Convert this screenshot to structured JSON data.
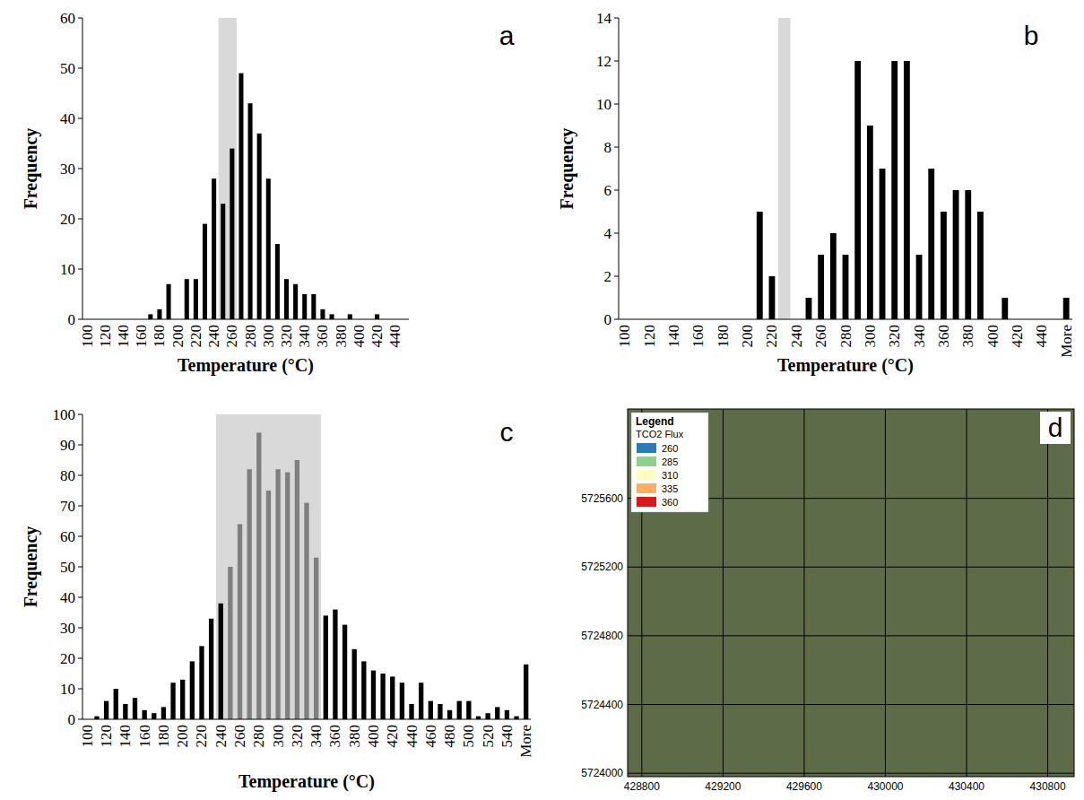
{
  "chart_data": [
    {
      "type": "bar",
      "panel_label": "a",
      "x_label": "Temperature (°C)",
      "y_label": "Frequency",
      "categories": [
        "100",
        null,
        "120",
        null,
        "140",
        null,
        "160",
        null,
        "180",
        null,
        "200",
        null,
        "220",
        null,
        "240",
        null,
        "260",
        null,
        "280",
        null,
        "300",
        null,
        "320",
        null,
        "340",
        null,
        "360",
        null,
        "380",
        null,
        "400",
        null,
        "420",
        null,
        "440",
        null
      ],
      "values": [
        0,
        0,
        0,
        0,
        0,
        0,
        0,
        1,
        2,
        7,
        0,
        8,
        8,
        19,
        28,
        23,
        34,
        49,
        43,
        37,
        28,
        15,
        8,
        7,
        5,
        5,
        2,
        1,
        0,
        1,
        0,
        0,
        1,
        0,
        0,
        0
      ],
      "color": "#000000",
      "ylim": [
        0,
        60
      ],
      "yticks": [
        0,
        10,
        20,
        30,
        40,
        50,
        60
      ],
      "shaded_range": [
        245,
        265
      ]
    },
    {
      "type": "bar",
      "panel_label": "b",
      "x_label": "Temperature (°C)",
      "y_label": "Frequency",
      "categories": [
        "100",
        null,
        "120",
        null,
        "140",
        null,
        "160",
        null,
        "180",
        null,
        "200",
        null,
        "220",
        null,
        "240",
        null,
        "260",
        null,
        "280",
        null,
        "300",
        null,
        "320",
        null,
        "340",
        null,
        "360",
        null,
        "380",
        null,
        "400",
        null,
        "420",
        null,
        "440",
        null,
        "More"
      ],
      "values": [
        0,
        0,
        0,
        0,
        0,
        0,
        0,
        0,
        0,
        0,
        0,
        5,
        2,
        0,
        0,
        1,
        3,
        4,
        3,
        12,
        9,
        7,
        12,
        12,
        3,
        7,
        5,
        6,
        6,
        5,
        0,
        1,
        0,
        0,
        0,
        0,
        1
      ],
      "color": "#000000",
      "ylim": [
        0,
        14
      ],
      "yticks": [
        0,
        2,
        4,
        6,
        8,
        10,
        12,
        14
      ],
      "shaded_range": [
        225,
        235
      ]
    },
    {
      "type": "bar",
      "panel_label": "c",
      "x_label": "Temperature (°C)",
      "y_label": "Frequency",
      "categories": [
        "100",
        null,
        "120",
        null,
        "140",
        null,
        "160",
        null,
        "180",
        null,
        "200",
        null,
        "220",
        null,
        "240",
        null,
        "260",
        null,
        "280",
        null,
        "300",
        null,
        "320",
        null,
        "340",
        null,
        "360",
        null,
        "380",
        null,
        "400",
        null,
        "420",
        null,
        "440",
        null,
        "460",
        null,
        "480",
        null,
        "500",
        null,
        "520",
        null,
        "540",
        null,
        "More"
      ],
      "values": [
        0,
        1,
        6,
        10,
        5,
        7,
        3,
        2,
        4,
        12,
        13,
        19,
        24,
        33,
        38,
        50,
        64,
        82,
        94,
        75,
        82,
        81,
        85,
        71,
        53,
        34,
        36,
        31,
        23,
        19,
        16,
        15,
        14,
        12,
        5,
        12,
        6,
        5,
        3,
        6,
        6,
        1,
        2,
        4,
        3,
        1,
        18
      ],
      "colors": [
        "#000000",
        "#000000",
        "#000000",
        "#000000",
        "#000000",
        "#000000",
        "#000000",
        "#000000",
        "#000000",
        "#000000",
        "#000000",
        "#000000",
        "#000000",
        "#000000",
        "#000000",
        "#7f7f7f",
        "#7f7f7f",
        "#7f7f7f",
        "#7f7f7f",
        "#7f7f7f",
        "#7f7f7f",
        "#7f7f7f",
        "#7f7f7f",
        "#7f7f7f",
        "#7f7f7f",
        "#000000",
        "#000000",
        "#000000",
        "#000000",
        "#000000",
        "#000000",
        "#000000",
        "#000000",
        "#000000",
        "#000000",
        "#000000",
        "#000000",
        "#000000",
        "#000000",
        "#000000",
        "#000000",
        "#000000",
        "#000000",
        "#000000",
        "#000000",
        "#000000",
        "#000000"
      ],
      "ylim": [
        0,
        100
      ],
      "yticks": [
        0,
        10,
        20,
        30,
        40,
        50,
        60,
        70,
        80,
        90,
        100
      ],
      "shaded_range": [
        235,
        345
      ]
    },
    {
      "type": "map",
      "panel_label": "d",
      "legend_title": "Legend",
      "legend_subtitle": "TCO2 Flux",
      "legend_items": [
        {
          "value": 260,
          "color": "#2c7bb6"
        },
        {
          "value": 285,
          "color": "#8fd18a"
        },
        {
          "value": 310,
          "color": "#ffffbf"
        },
        {
          "value": 335,
          "color": "#fdae61"
        },
        {
          "value": 360,
          "color": "#d7191c"
        }
      ],
      "xlim": [
        428730,
        430930
      ],
      "ylim": [
        5723980,
        5726120
      ],
      "xticks": [
        428800,
        429200,
        429600,
        430000,
        430400,
        430800
      ],
      "yticks": [
        5724000,
        5724400,
        5724800,
        5725200,
        5725600
      ],
      "grid": true,
      "legend": "top-left"
    }
  ]
}
